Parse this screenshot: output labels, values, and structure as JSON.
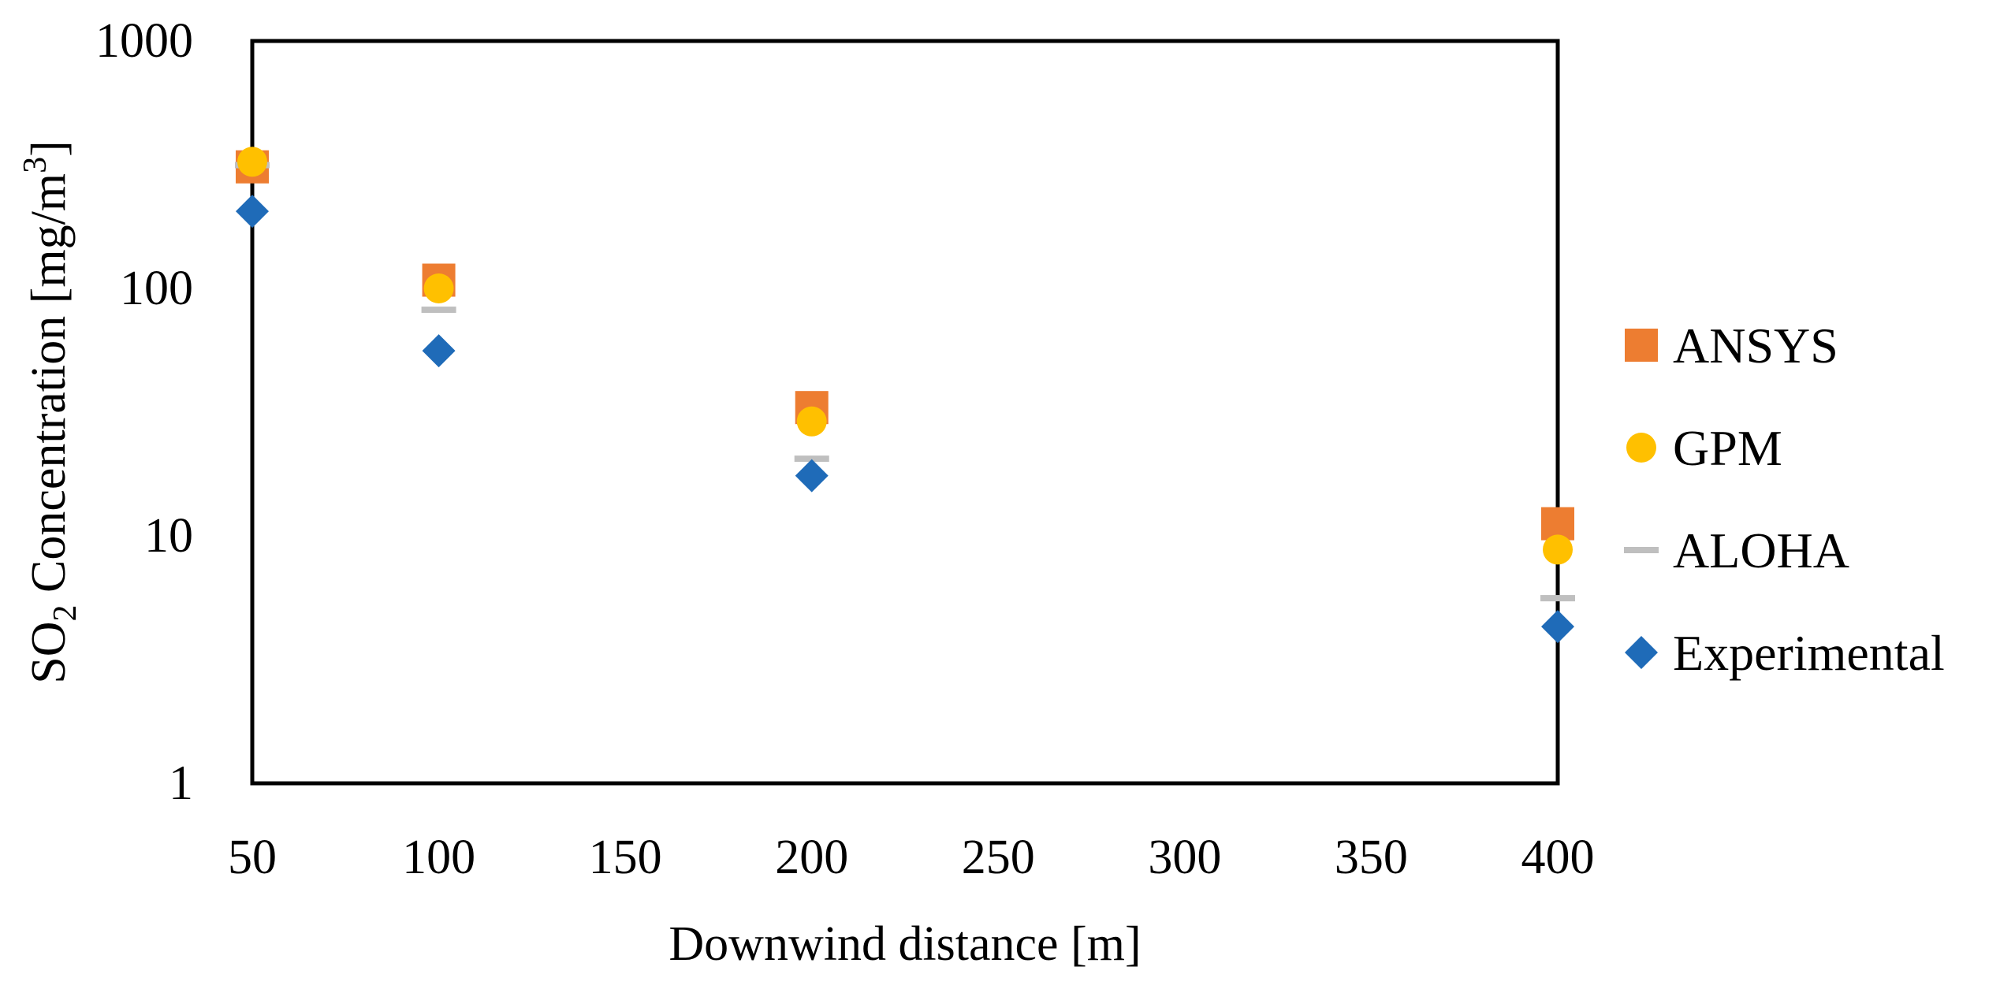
{
  "chart_data": {
    "type": "scatter",
    "title": "",
    "xlabel": "Downwind distance [m]",
    "ylabel": {
      "prefix": "SO",
      "sub": "2",
      "middle": " Concentration [mg/m",
      "sup": "3",
      "suffix": "]"
    },
    "x_scale": "linear",
    "y_scale": "log",
    "xlim": [
      50,
      400
    ],
    "ylim": [
      1,
      1000
    ],
    "x_ticks": [
      50,
      100,
      150,
      200,
      250,
      300,
      350,
      400
    ],
    "y_ticks": [
      1,
      10,
      100,
      1000
    ],
    "grid": false,
    "legend_position": "right",
    "series": [
      {
        "name": "ANSYS",
        "marker": "square",
        "color": "#ED7D31",
        "x": [
          50,
          100,
          200,
          400
        ],
        "y": [
          310,
          108,
          33,
          11.2
        ]
      },
      {
        "name": "GPM",
        "marker": "circle",
        "color": "#FFC000",
        "x": [
          50,
          100,
          200,
          400
        ],
        "y": [
          325,
          100,
          29,
          8.8
        ]
      },
      {
        "name": "ALOHA",
        "marker": "dash",
        "color": "#BFBFBF",
        "x": [
          50,
          100,
          200,
          400
        ],
        "y": [
          315,
          82,
          20.5,
          5.6
        ]
      },
      {
        "name": "Experimental",
        "marker": "diamond",
        "color": "#1F6BB8",
        "x": [
          50,
          100,
          200,
          400
        ],
        "y": [
          205,
          56,
          17.5,
          4.3
        ]
      }
    ]
  }
}
